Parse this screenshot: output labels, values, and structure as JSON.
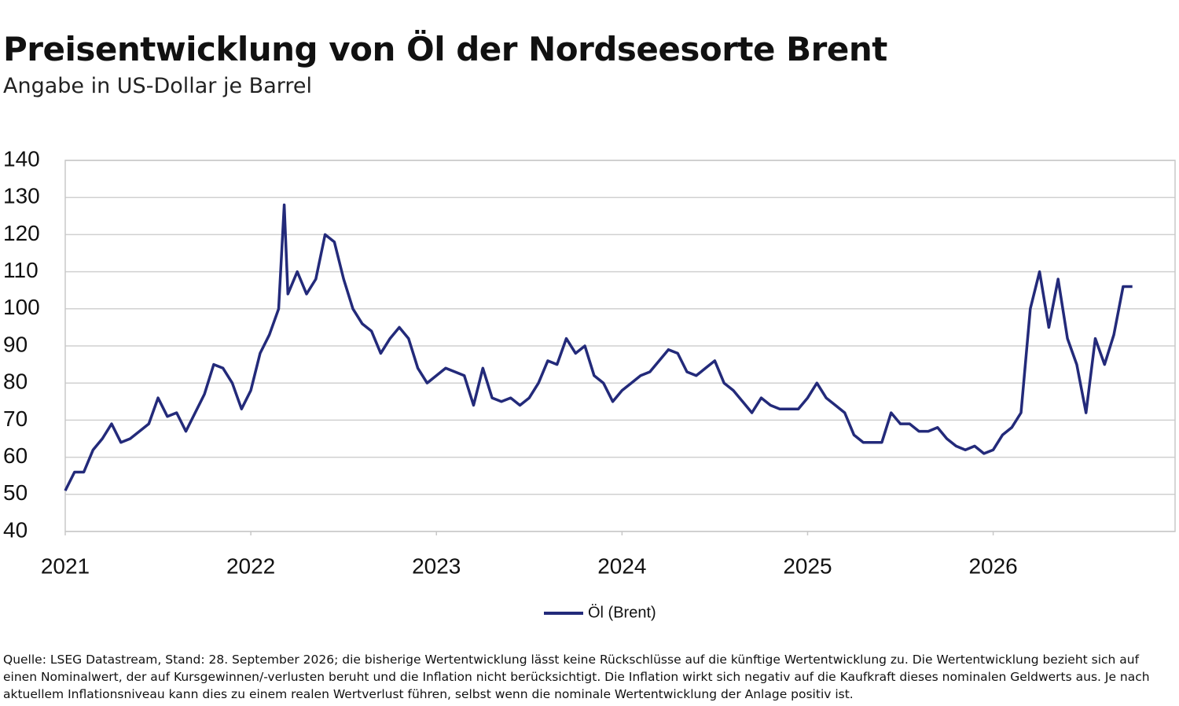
{
  "chart_data": {
    "type": "line",
    "title": "Preisentwicklung von Öl der Nordseesorte Brent",
    "subtitle": "Angabe in US-Dollar je Barrel",
    "x": [
      2021.0,
      2021.05,
      2021.1,
      2021.15,
      2021.2,
      2021.25,
      2021.3,
      2021.35,
      2021.4,
      2021.45,
      2021.5,
      2021.55,
      2021.6,
      2021.65,
      2021.7,
      2021.75,
      2021.8,
      2021.85,
      2021.9,
      2021.95,
      2022.0,
      2022.05,
      2022.1,
      2022.15,
      2022.18,
      2022.2,
      2022.25,
      2022.3,
      2022.35,
      2022.4,
      2022.45,
      2022.5,
      2022.55,
      2022.6,
      2022.65,
      2022.7,
      2022.75,
      2022.8,
      2022.85,
      2022.9,
      2022.95,
      2023.0,
      2023.05,
      2023.1,
      2023.15,
      2023.2,
      2023.25,
      2023.3,
      2023.35,
      2023.4,
      2023.45,
      2023.5,
      2023.55,
      2023.6,
      2023.65,
      2023.7,
      2023.75,
      2023.8,
      2023.85,
      2023.9,
      2023.95,
      2024.0,
      2024.05,
      2024.1,
      2024.15,
      2024.2,
      2024.25,
      2024.3,
      2024.35,
      2024.4,
      2024.45,
      2024.5,
      2024.55,
      2024.6,
      2024.65,
      2024.7,
      2024.75,
      2024.8,
      2024.85,
      2024.9,
      2024.95,
      2025.0,
      2025.05,
      2025.1,
      2025.15,
      2025.2,
      2025.25,
      2025.3,
      2025.35,
      2025.4,
      2025.45,
      2025.5,
      2025.55,
      2025.6,
      2025.65,
      2025.7,
      2025.75,
      2025.8,
      2025.85,
      2025.9,
      2025.95,
      2026.0,
      2026.05,
      2026.1,
      2026.15,
      2026.2,
      2026.25,
      2026.3,
      2026.35,
      2026.4,
      2026.45,
      2026.5,
      2026.55,
      2026.6,
      2026.65,
      2026.7,
      2026.75
    ],
    "series": [
      {
        "name": "Öl (Brent)",
        "color": "#232a7a",
        "values": [
          51,
          56,
          56,
          62,
          65,
          69,
          64,
          65,
          67,
          69,
          76,
          71,
          72,
          67,
          72,
          77,
          85,
          84,
          80,
          73,
          78,
          88,
          93,
          100,
          128,
          104,
          110,
          104,
          108,
          120,
          118,
          108,
          100,
          96,
          94,
          88,
          92,
          95,
          92,
          84,
          80,
          82,
          84,
          83,
          82,
          74,
          84,
          76,
          75,
          76,
          74,
          76,
          80,
          86,
          85,
          92,
          88,
          90,
          82,
          80,
          75,
          78,
          80,
          82,
          83,
          86,
          89,
          88,
          83,
          82,
          84,
          86,
          80,
          78,
          75,
          72,
          76,
          74,
          73,
          73,
          73,
          76,
          80,
          76,
          74,
          72,
          66,
          64,
          64,
          64,
          72,
          69,
          69,
          67,
          67,
          68,
          65,
          63,
          62,
          63,
          61,
          62,
          66,
          68,
          72,
          100,
          110,
          95,
          108,
          92,
          85,
          72,
          92,
          85,
          93,
          106,
          106
        ]
      }
    ],
    "xlim": [
      2021,
      2026.98
    ],
    "xticks": [
      2021,
      2022,
      2023,
      2024,
      2025,
      2026
    ],
    "ylim": [
      40,
      140
    ],
    "yticks": [
      40,
      50,
      60,
      70,
      80,
      90,
      100,
      110,
      120,
      130,
      140
    ],
    "grid": true,
    "legend": "bottom",
    "footnote": "Quelle: LSEG Datastream, Stand: 28. September 2026; die bisherige Wertentwicklung lässt keine Rückschlüsse auf die künftige Wertentwicklung zu. Die Wertentwicklung bezieht sich auf einen Nominalwert, der auf Kursgewinnen/-verlusten beruht und die Inflation nicht berücksichtigt. Die Inflation wirkt sich negativ auf die Kaufkraft dieses nominalen Geldwerts aus. Je nach aktuellem Inflationsniveau kann dies zu einem realen Wertverlust führen, selbst wenn die nominale Wertentwicklung der Anlage positiv ist."
  }
}
